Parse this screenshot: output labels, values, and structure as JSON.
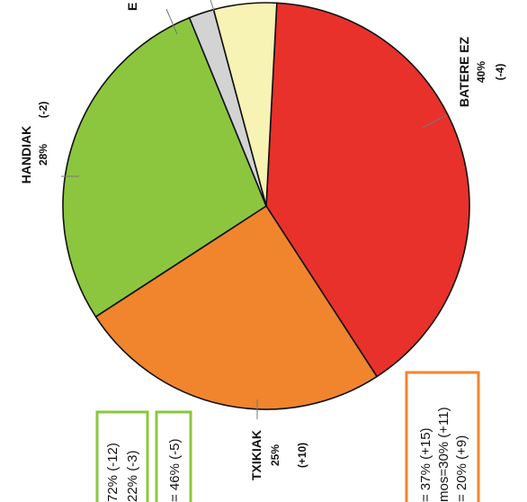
{
  "chart_data": {
    "type": "pie",
    "slices": [
      {
        "label": "BATERE EZ",
        "percent_label": "40%",
        "change_label": "(-4)",
        "value": 40,
        "color": "#e8312a"
      },
      {
        "label": "TXIKIAK",
        "percent_label": "25%",
        "change_label": "(+10)",
        "value": 25,
        "color": "#f0852e"
      },
      {
        "label": "HANDIAK",
        "percent_label": "28%",
        "change_label": "(-2)",
        "value": 28,
        "color": "#8cc63f"
      },
      {
        "label": "",
        "percent_label": "",
        "change_label": "",
        "value": 2,
        "color": "#d3d3d3"
      },
      {
        "label": "",
        "percent_label": "",
        "change_label": "",
        "value": 5,
        "color": "#f7f3b5"
      }
    ],
    "cut_label": "E",
    "boxes": [
      {
        "border": "#8cc63f",
        "lines": [
          "72% (-12)",
          "22% (-3)"
        ]
      },
      {
        "border": "#8cc63f",
        "lines": [
          "= 46% (-5)"
        ]
      },
      {
        "border": "#f0852e",
        "lines": [
          "= 37% (+15)",
          "mos=30% (+11)",
          "= 20% (+9)"
        ]
      }
    ]
  }
}
